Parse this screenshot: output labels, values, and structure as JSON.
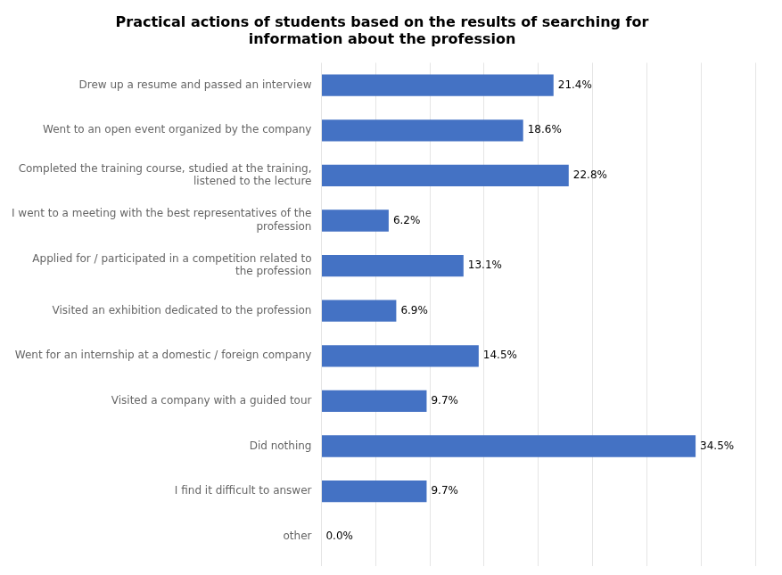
{
  "chart_data": {
    "type": "bar",
    "orientation": "horizontal",
    "title": "Practical actions of students based on the results of searching for\ninformation about the profession",
    "categories": [
      "other",
      "I find it difficult to answer",
      "Did nothing",
      "Visited a company with a guided tour",
      "Went for an internship at a domestic / foreign company",
      "Visited an exhibition dedicated to the profession",
      "Applied for / participated in a competition related to\nthe profession",
      "I went to a meeting with the best representatives of the\nprofession",
      "Completed the training course, studied at the training,\nlistened to the lecture",
      "Went to an open event organized by the company",
      "Drew up a resume and passed an interview"
    ],
    "values": [
      0.0,
      9.7,
      34.5,
      9.7,
      14.5,
      6.9,
      13.1,
      6.2,
      22.8,
      18.6,
      21.4
    ],
    "value_labels": [
      "0.0%",
      "9.7%",
      "34.5%",
      "9.7%",
      "14.5%",
      "6.9%",
      "13.1%",
      "6.2%",
      "22.8%",
      "18.6%",
      "21.4%"
    ],
    "data_labels": true,
    "color": "#4472C4",
    "xlim": [
      0,
      40
    ],
    "xticks": [
      0,
      5,
      10,
      15,
      20,
      25,
      30,
      35,
      40
    ],
    "grid": true,
    "tick_labels": "y"
  }
}
